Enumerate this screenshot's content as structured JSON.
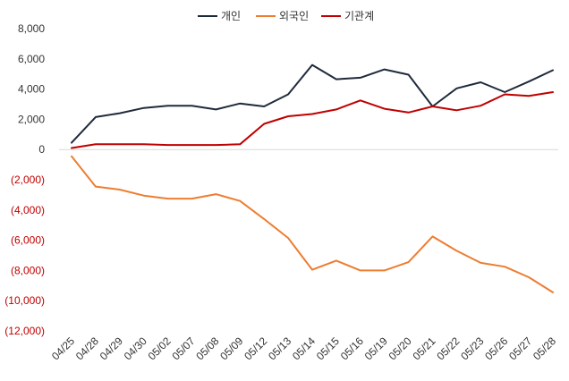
{
  "chart_data": {
    "type": "line",
    "title": "",
    "xlabel": "",
    "ylabel": "",
    "ylim": [
      -12000,
      8000
    ],
    "yticks": [
      8000,
      6000,
      4000,
      2000,
      0,
      -2000,
      -4000,
      -6000,
      -8000,
      -10000,
      -12000
    ],
    "ytick_labels": [
      "8,000",
      "6,000",
      "4,000",
      "2,000",
      "0",
      "(2,000)",
      "(4,000)",
      "(6,000)",
      "(8,000)",
      "(10,000)",
      "(12,000)"
    ],
    "legend_position": "top-center",
    "grid": false,
    "categories": [
      "04/25",
      "04/28",
      "04/29",
      "04/30",
      "05/02",
      "05/07",
      "05/08",
      "05/09",
      "05/12",
      "05/13",
      "05/14",
      "05/15",
      "05/16",
      "05/19",
      "05/20",
      "05/21",
      "05/22",
      "05/23",
      "05/26",
      "05/27",
      "05/28"
    ],
    "series": [
      {
        "name": "개인",
        "color": "#1f2a3c",
        "values": [
          450,
          2150,
          2400,
          2750,
          2900,
          2900,
          2650,
          3050,
          2850,
          3650,
          5600,
          4650,
          4750,
          5300,
          4950,
          2850,
          4050,
          4450,
          3800,
          4500,
          5250
        ]
      },
      {
        "name": "외국인",
        "color": "#ed7d31",
        "values": [
          -450,
          -2450,
          -2650,
          -3050,
          -3250,
          -3250,
          -2950,
          -3400,
          -4600,
          -5850,
          -7950,
          -7350,
          -8000,
          -8000,
          -7450,
          -5750,
          -6700,
          -7500,
          -7750,
          -8450,
          -9450
        ]
      },
      {
        "name": "기관계",
        "color": "#c00000",
        "values": [
          100,
          350,
          350,
          350,
          300,
          300,
          300,
          350,
          1700,
          2200,
          2350,
          2650,
          3250,
          2700,
          2450,
          2850,
          2600,
          2900,
          3650,
          3550,
          3800
        ]
      }
    ],
    "colors": {
      "axis_positive": "#333333",
      "axis_negative": "#c00000",
      "axis_line": "#d9d9d9"
    }
  }
}
